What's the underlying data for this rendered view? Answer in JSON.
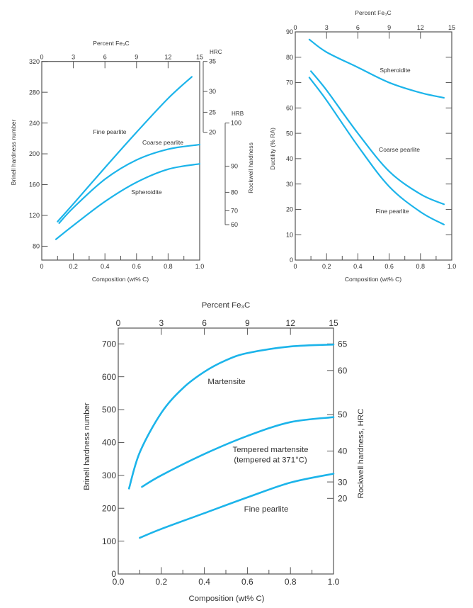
{
  "chart_data": [
    {
      "type": "line",
      "title": "",
      "top_axis_label": "Percent Fe₃C",
      "top_ticks": [
        0,
        3,
        6,
        9,
        12,
        15
      ],
      "xlabel": "Composition (wt% C)",
      "xlim": [
        0,
        1.0
      ],
      "x_tick_labels": [
        "0",
        "0.2",
        "0.4",
        "0.6",
        "0.8",
        "1.0"
      ],
      "ylabel": "Brinell hardness number",
      "ylim": [
        62,
        320
      ],
      "y_ticks": [
        80,
        120,
        160,
        200,
        240,
        280,
        320
      ],
      "right_axis_label": "Rockwell hardness",
      "hrc": {
        "label": "HRC",
        "ticks": [
          {
            "label": "35",
            "brinell": 320
          },
          {
            "label": "30",
            "brinell": 281
          },
          {
            "label": "25",
            "brinell": 254
          },
          {
            "label": "20",
            "brinell": 228
          }
        ]
      },
      "hrb": {
        "label": "HRB",
        "ticks": [
          {
            "label": "100",
            "brinell": 240
          },
          {
            "label": "90",
            "brinell": 184
          },
          {
            "label": "80",
            "brinell": 150
          },
          {
            "label": "70",
            "brinell": 126
          },
          {
            "label": "60",
            "brinell": 108
          }
        ]
      },
      "grid": false,
      "line_color": "#1cb4ea",
      "series": [
        {
          "name": "Fine pearlite",
          "x": [
            0.1,
            0.2,
            0.4,
            0.6,
            0.8,
            0.95
          ],
          "y": [
            112,
            135,
            182,
            228,
            272,
            300
          ]
        },
        {
          "name": "Coarse pearlite",
          "x": [
            0.11,
            0.2,
            0.4,
            0.6,
            0.8,
            1.0
          ],
          "y": [
            110,
            130,
            167,
            192,
            206,
            212
          ]
        },
        {
          "name": "Spheroidite",
          "x": [
            0.09,
            0.2,
            0.4,
            0.6,
            0.8,
            1.0
          ],
          "y": [
            89,
            107,
            138,
            163,
            180,
            187
          ]
        }
      ]
    },
    {
      "type": "line",
      "title": "",
      "top_axis_label": "Percent Fe₃C",
      "top_ticks": [
        0,
        3,
        6,
        9,
        12,
        15
      ],
      "xlabel": "Composition (wt% C)",
      "xlim": [
        0,
        1.0
      ],
      "x_tick_labels": [
        "0",
        "0.2",
        "0.4",
        "0.6",
        "0.8",
        "1.0"
      ],
      "ylabel": "Ductility (% RA)",
      "ylim": [
        0,
        90
      ],
      "y_ticks": [
        0,
        10,
        20,
        30,
        40,
        50,
        60,
        70,
        80,
        90
      ],
      "grid": false,
      "line_color": "#1cb4ea",
      "series": [
        {
          "name": "Spheroidite",
          "x": [
            0.09,
            0.2,
            0.4,
            0.6,
            0.8,
            0.95
          ],
          "y": [
            87,
            82,
            76,
            70,
            66,
            64
          ]
        },
        {
          "name": "Coarse pearlite",
          "x": [
            0.1,
            0.2,
            0.4,
            0.6,
            0.8,
            0.95
          ],
          "y": [
            74.5,
            67,
            50,
            35,
            26,
            22
          ]
        },
        {
          "name": "Fine pearlite",
          "x": [
            0.09,
            0.2,
            0.4,
            0.6,
            0.8,
            0.95
          ],
          "y": [
            72,
            63,
            45,
            29,
            19,
            14
          ]
        }
      ]
    },
    {
      "type": "line",
      "title": "",
      "top_axis_label": "Percent Fe₃C",
      "top_ticks": [
        0,
        3,
        6,
        9,
        12,
        15
      ],
      "xlabel": "Composition (wt% C)",
      "xlim": [
        0,
        1.0
      ],
      "x_tick_labels": [
        "0.0",
        "0.2",
        "0.4",
        "0.6",
        "0.8",
        "1.0"
      ],
      "ylabel": "Brinell hardness number",
      "ylim": [
        0,
        748
      ],
      "y_ticks": [
        0,
        100,
        200,
        300,
        400,
        500,
        600,
        700
      ],
      "right_axis_label": "Rockwell hardness, HRC",
      "hrc": {
        "label": "",
        "ticks": [
          {
            "label": "65",
            "brinell": 700
          },
          {
            "label": "60",
            "brinell": 619
          },
          {
            "label": "50",
            "brinell": 485
          },
          {
            "label": "40",
            "brinell": 374
          },
          {
            "label": "30",
            "brinell": 280
          },
          {
            "label": "20",
            "brinell": 230
          }
        ]
      },
      "grid": false,
      "line_color": "#1cb4ea",
      "series": [
        {
          "name": "Martensite",
          "x": [
            0.05,
            0.1,
            0.2,
            0.3,
            0.4,
            0.5,
            0.6,
            0.8,
            1.0
          ],
          "y": [
            260,
            370,
            490,
            565,
            615,
            650,
            672,
            692,
            698
          ]
        },
        {
          "name": "Tempered martensite (tempered at 371°C)",
          "label_lines": [
            "Tempered martensite",
            "(tempered at 371°C)"
          ],
          "x": [
            0.11,
            0.2,
            0.4,
            0.6,
            0.8,
            1.0
          ],
          "y": [
            265,
            300,
            365,
            420,
            462,
            477
          ]
        },
        {
          "name": "Fine pearlite",
          "x": [
            0.1,
            0.2,
            0.4,
            0.6,
            0.8,
            1.0
          ],
          "y": [
            110,
            137,
            185,
            233,
            278,
            305
          ]
        }
      ]
    }
  ]
}
